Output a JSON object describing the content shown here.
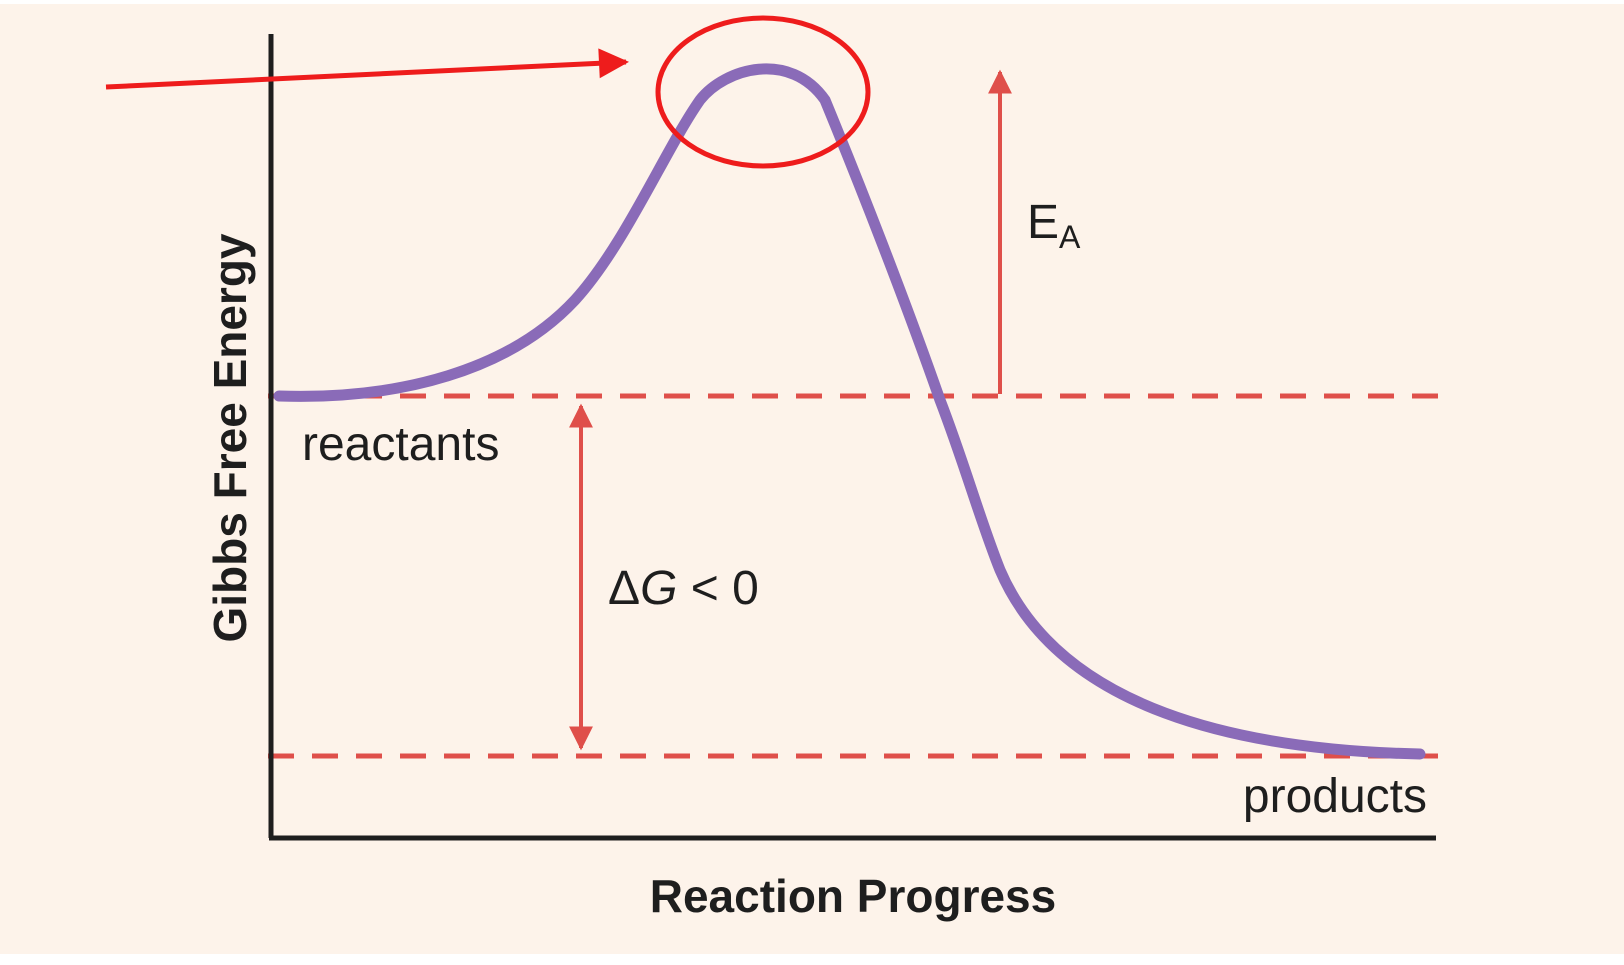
{
  "diagram": {
    "y_axis_title": "Gibbs Free Energy",
    "x_axis_title": "Reaction Progress",
    "reactants_label": "reactants",
    "products_label": "products",
    "activation_energy": {
      "main": "E",
      "subscript": "A"
    },
    "delta_g_label": {
      "symbol": "Δ",
      "variable": "G",
      "relation": " < 0"
    }
  },
  "colors": {
    "background": "#fdf3ea",
    "curve": "#8a6bb8",
    "level_lines": "#df4f4a",
    "annotation": "#ee1c1c",
    "axes": "#1e1e1e"
  }
}
